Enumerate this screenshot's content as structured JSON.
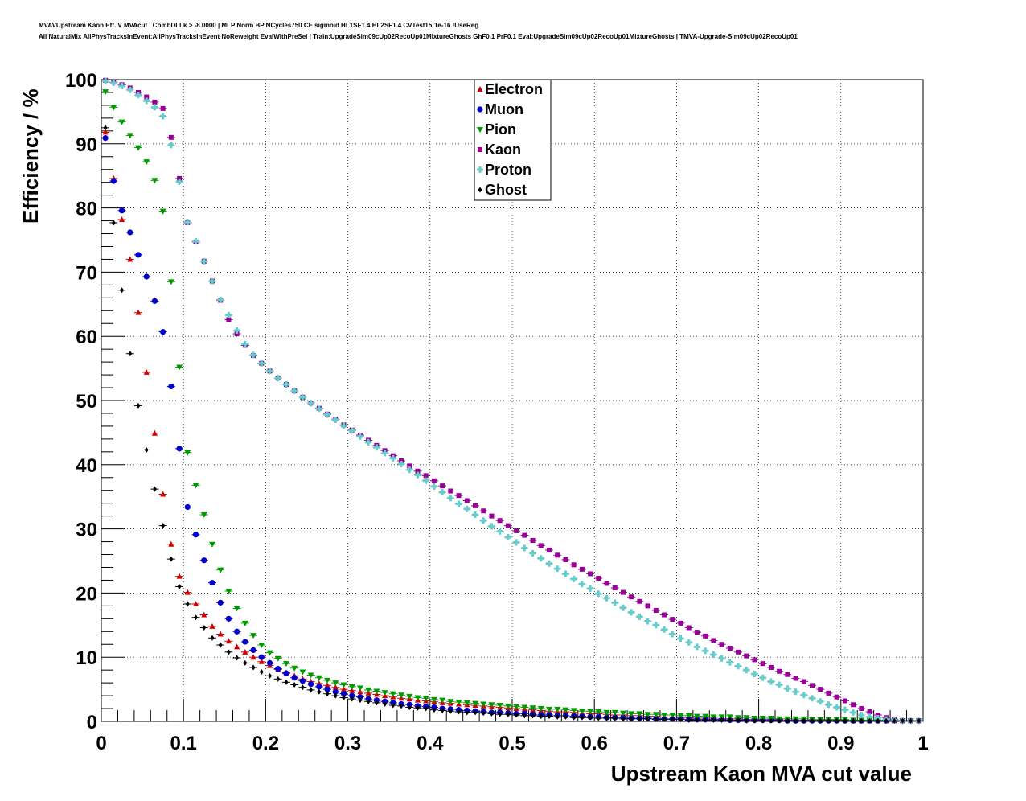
{
  "title_lines": [
    "MVAVUpstream Kaon Eff. V MVAcut | CombDLLk > -8.0000 | MLP Norm BP NCycles750 CE sigmoid HL1SF1.4 HL2SF1.4 CVTest15:1e-16 !UseReg",
    "All NaturalMix AllPhysTracksInEvent:AllPhysTracksInEvent NoReweight EvalWithPreSel | Train:UpgradeSim09cUp02RecoUp01MixtureGhosts GhF0.1 PrF0.1 Eval:UpgradeSim09cUp02RecoUp01MixtureGhosts | TMVA-Upgrade-Sim09cUp02RecoUp01"
  ],
  "chart_data": {
    "type": "scatter",
    "xlabel": "Upstream Kaon MVA cut value",
    "ylabel": "Efficiency / %",
    "xlim": [
      0,
      1
    ],
    "ylim": [
      0,
      100
    ],
    "x_ticks": [
      "0",
      "0.1",
      "0.2",
      "0.3",
      "0.4",
      "0.5",
      "0.6",
      "0.7",
      "0.8",
      "0.9",
      "1"
    ],
    "y_ticks": [
      "0",
      "10",
      "20",
      "30",
      "40",
      "50",
      "60",
      "70",
      "80",
      "90",
      "100"
    ],
    "grid": true,
    "legend_position": "top-center",
    "x": [
      0.005,
      0.015,
      0.025,
      0.035,
      0.045,
      0.055,
      0.065,
      0.075,
      0.085,
      0.095,
      0.105,
      0.115,
      0.125,
      0.135,
      0.145,
      0.155,
      0.165,
      0.175,
      0.185,
      0.195,
      0.205,
      0.215,
      0.225,
      0.235,
      0.245,
      0.255,
      0.265,
      0.275,
      0.285,
      0.295,
      0.305,
      0.315,
      0.325,
      0.335,
      0.345,
      0.355,
      0.365,
      0.375,
      0.385,
      0.395,
      0.405,
      0.415,
      0.425,
      0.435,
      0.445,
      0.455,
      0.465,
      0.475,
      0.485,
      0.495,
      0.505,
      0.515,
      0.525,
      0.535,
      0.545,
      0.555,
      0.565,
      0.575,
      0.585,
      0.595,
      0.605,
      0.615,
      0.625,
      0.635,
      0.645,
      0.655,
      0.665,
      0.675,
      0.685,
      0.695,
      0.705,
      0.715,
      0.725,
      0.735,
      0.745,
      0.755,
      0.765,
      0.775,
      0.785,
      0.795,
      0.805,
      0.815,
      0.825,
      0.835,
      0.845,
      0.855,
      0.865,
      0.875,
      0.885,
      0.895,
      0.905,
      0.915,
      0.925,
      0.935,
      0.945,
      0.955,
      0.965,
      0.975,
      0.985,
      0.995
    ],
    "series": [
      {
        "name": "Electron",
        "color": "#cc0000",
        "marker": "triangle-up",
        "values": [
          91.8,
          84.6,
          78.2,
          72.0,
          63.7,
          54.4,
          44.9,
          35.4,
          27.6,
          22.6,
          20.1,
          18.3,
          16.6,
          14.8,
          13.6,
          12.5,
          11.6,
          10.8,
          10.0,
          9.3,
          8.7,
          8.1,
          7.6,
          7.1,
          6.6,
          6.2,
          5.9,
          5.6,
          5.3,
          5.0,
          4.8,
          4.6,
          4.4,
          4.2,
          4.0,
          3.8,
          3.6,
          3.5,
          3.3,
          3.2,
          3.1,
          2.9,
          2.8,
          2.7,
          2.6,
          2.5,
          2.4,
          2.3,
          2.2,
          2.1,
          2.0,
          1.9,
          1.8,
          1.7,
          1.6,
          1.5,
          1.5,
          1.4,
          1.3,
          1.2,
          1.2,
          1.1,
          1.0,
          1.0,
          0.9,
          0.9,
          0.8,
          0.8,
          0.7,
          0.7,
          0.6,
          0.6,
          0.5,
          0.5,
          0.5,
          0.4,
          0.4,
          0.4,
          0.3,
          0.3,
          0.3,
          0.3,
          0.3,
          0.2,
          0.2,
          0.2,
          0.2,
          0.2,
          0.2,
          0.2,
          0.2,
          0.1,
          0.1,
          0.1,
          0.1,
          0.1,
          0.1,
          0.1,
          0.1,
          0.1
        ]
      },
      {
        "name": "Muon",
        "color": "#0000cc",
        "marker": "circle",
        "values": [
          90.9,
          84.2,
          79.6,
          76.2,
          72.7,
          69.3,
          65.5,
          60.7,
          52.2,
          42.5,
          33.4,
          29.1,
          25.1,
          21.6,
          18.5,
          16.0,
          14.0,
          12.4,
          11.1,
          10.0,
          9.1,
          8.2,
          7.5,
          6.8,
          6.3,
          5.8,
          5.4,
          5.0,
          4.6,
          4.3,
          4.0,
          3.8,
          3.5,
          3.3,
          3.1,
          2.9,
          2.7,
          2.6,
          2.4,
          2.3,
          2.2,
          2.0,
          1.9,
          1.8,
          1.7,
          1.6,
          1.5,
          1.4,
          1.4,
          1.3,
          1.2,
          1.2,
          1.1,
          1.0,
          1.0,
          0.9,
          0.9,
          0.8,
          0.8,
          0.7,
          0.7,
          0.6,
          0.6,
          0.6,
          0.5,
          0.5,
          0.5,
          0.4,
          0.4,
          0.4,
          0.4,
          0.3,
          0.3,
          0.3,
          0.3,
          0.3,
          0.2,
          0.2,
          0.2,
          0.2,
          0.2,
          0.2,
          0.2,
          0.1,
          0.1,
          0.1,
          0.1,
          0.1,
          0.1,
          0.1,
          0.1,
          0.1,
          0.1,
          0.1,
          0.1,
          0.1,
          0.1,
          0.1,
          0.1,
          0.1
        ]
      },
      {
        "name": "Pion",
        "color": "#009900",
        "marker": "triangle-down",
        "values": [
          98.1,
          95.7,
          93.4,
          91.3,
          89.4,
          87.2,
          84.3,
          79.5,
          68.5,
          55.2,
          41.9,
          36.8,
          32.2,
          27.6,
          23.6,
          20.3,
          17.6,
          15.3,
          13.4,
          11.9,
          10.7,
          9.8,
          9.0,
          8.3,
          7.7,
          7.2,
          6.8,
          6.4,
          6.0,
          5.7,
          5.4,
          5.2,
          4.9,
          4.7,
          4.5,
          4.3,
          4.1,
          3.9,
          3.7,
          3.6,
          3.4,
          3.3,
          3.1,
          3.0,
          2.9,
          2.8,
          2.7,
          2.6,
          2.5,
          2.4,
          2.3,
          2.2,
          2.1,
          2.0,
          1.9,
          1.9,
          1.8,
          1.7,
          1.6,
          1.6,
          1.5,
          1.4,
          1.4,
          1.3,
          1.2,
          1.2,
          1.1,
          1.1,
          1.0,
          1.0,
          0.9,
          0.9,
          0.8,
          0.8,
          0.7,
          0.7,
          0.7,
          0.6,
          0.6,
          0.5,
          0.5,
          0.5,
          0.4,
          0.4,
          0.4,
          0.4,
          0.3,
          0.3,
          0.3,
          0.3,
          0.3,
          0.2,
          0.2,
          0.2,
          0.2,
          0.2,
          0.1,
          0.1,
          0.1,
          0.1
        ]
      },
      {
        "name": "Kaon",
        "color": "#990099",
        "marker": "square",
        "values": [
          99.9,
          99.6,
          99.2,
          98.7,
          98.0,
          97.3,
          96.5,
          95.5,
          91.0,
          84.6,
          77.7,
          74.7,
          71.7,
          68.6,
          65.6,
          62.6,
          60.4,
          58.6,
          57.0,
          55.8,
          54.6,
          53.5,
          52.5,
          51.5,
          50.5,
          49.6,
          48.8,
          47.9,
          47.1,
          46.2,
          45.4,
          44.6,
          43.8,
          43.0,
          42.2,
          41.4,
          40.6,
          39.8,
          39.0,
          38.3,
          37.5,
          36.7,
          35.9,
          35.2,
          34.4,
          33.6,
          32.8,
          32.0,
          31.3,
          30.5,
          29.7,
          29.0,
          28.2,
          27.4,
          26.7,
          25.9,
          25.2,
          24.4,
          23.7,
          23.0,
          22.3,
          21.5,
          20.8,
          20.1,
          19.4,
          18.7,
          18.0,
          17.3,
          16.6,
          15.9,
          15.3,
          14.6,
          13.9,
          13.3,
          12.6,
          12.0,
          11.4,
          10.8,
          10.2,
          9.6,
          9.0,
          8.4,
          7.8,
          7.3,
          6.7,
          6.2,
          5.6,
          5.0,
          4.4,
          3.8,
          3.2,
          2.6,
          2.0,
          1.5,
          1.0,
          0.6,
          0.3,
          0.1,
          0.1,
          0.1
        ]
      },
      {
        "name": "Proton",
        "color": "#66cccc",
        "marker": "cross",
        "values": [
          99.8,
          99.5,
          99.0,
          98.4,
          97.6,
          96.7,
          95.7,
          94.3,
          89.8,
          84.1,
          77.8,
          74.8,
          71.7,
          68.6,
          65.7,
          63.3,
          60.9,
          58.8,
          57.1,
          55.8,
          54.6,
          53.5,
          52.5,
          51.5,
          50.5,
          49.6,
          48.7,
          47.8,
          47.0,
          46.1,
          45.3,
          44.4,
          43.5,
          42.7,
          41.8,
          41.0,
          40.1,
          39.2,
          38.4,
          37.5,
          36.6,
          35.7,
          34.8,
          33.9,
          33.1,
          32.2,
          31.3,
          30.4,
          29.6,
          28.7,
          27.9,
          27.0,
          26.2,
          25.4,
          24.6,
          23.8,
          23.0,
          22.2,
          21.4,
          20.7,
          19.9,
          19.2,
          18.5,
          17.7,
          17.0,
          16.3,
          15.6,
          15.0,
          14.3,
          13.6,
          12.9,
          12.3,
          11.6,
          11.0,
          10.4,
          9.8,
          9.2,
          8.6,
          8.0,
          7.4,
          6.8,
          6.2,
          5.7,
          5.1,
          4.6,
          4.1,
          3.6,
          3.1,
          2.6,
          2.2,
          1.8,
          1.4,
          1.0,
          0.7,
          0.5,
          0.3,
          0.2,
          0.1,
          0.1,
          0.1
        ]
      },
      {
        "name": "Ghost",
        "color": "#000000",
        "marker": "diamond",
        "values": [
          92.5,
          77.7,
          67.2,
          57.3,
          49.2,
          42.3,
          36.2,
          30.5,
          25.3,
          21.0,
          18.3,
          16.2,
          14.6,
          13.0,
          11.9,
          10.8,
          9.9,
          9.1,
          8.4,
          7.7,
          7.1,
          6.6,
          6.1,
          5.7,
          5.3,
          4.9,
          4.6,
          4.3,
          4.0,
          3.7,
          3.5,
          3.3,
          3.1,
          2.9,
          2.7,
          2.5,
          2.4,
          2.2,
          2.1,
          2.0,
          1.8,
          1.7,
          1.6,
          1.5,
          1.4,
          1.4,
          1.3,
          1.2,
          1.1,
          1.1,
          1.0,
          0.9,
          0.9,
          0.8,
          0.8,
          0.7,
          0.7,
          0.6,
          0.6,
          0.6,
          0.5,
          0.5,
          0.5,
          0.4,
          0.4,
          0.4,
          0.4,
          0.3,
          0.3,
          0.3,
          0.3,
          0.2,
          0.2,
          0.2,
          0.2,
          0.2,
          0.2,
          0.2,
          0.1,
          0.1,
          0.1,
          0.1,
          0.1,
          0.1,
          0.1,
          0.1,
          0.1,
          0.1,
          0.1,
          0.1,
          0.1,
          0.1,
          0.1,
          0.1,
          0.1,
          0.1,
          0.1,
          0.1,
          0.1,
          0.1
        ]
      }
    ]
  }
}
